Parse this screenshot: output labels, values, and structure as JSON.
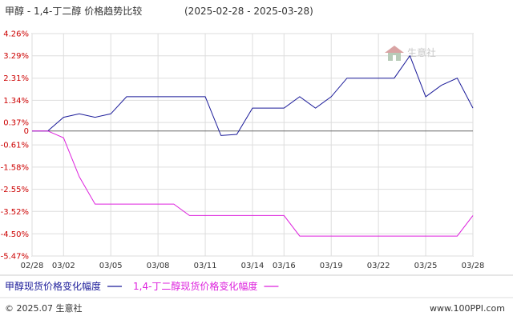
{
  "chart_data": {
    "type": "line",
    "title": "甲醇 - 1,4-丁二醇 价格趋势比较",
    "date_range": "(2025-02-28 - 2025-03-28)",
    "xlabel": "",
    "ylabel": "",
    "x_ticks": [
      "02/28",
      "03/02",
      "03/05",
      "03/08",
      "03/11",
      "03/14",
      "03/16",
      "03/19",
      "03/22",
      "03/25",
      "03/28"
    ],
    "y_ticks": [
      "4.26%",
      "3.29%",
      "2.31%",
      "1.34%",
      "0.37%",
      "0",
      "-0.61%",
      "-1.58%",
      "-2.55%",
      "-3.52%",
      "-4.50%",
      "-5.47%"
    ],
    "ylim": [
      -5.47,
      4.26
    ],
    "grid": true,
    "legend_position": "bottom-left",
    "series": [
      {
        "name": "甲醇现货价格变化幅度",
        "color": "#1a1a99",
        "x": [
          "02/28",
          "03/01",
          "03/02",
          "03/03",
          "03/04",
          "03/05",
          "03/06",
          "03/07",
          "03/08",
          "03/09",
          "03/10",
          "03/11",
          "03/12",
          "03/13",
          "03/14",
          "03/15",
          "03/16",
          "03/17",
          "03/18",
          "03/19",
          "03/20",
          "03/21",
          "03/22",
          "03/23",
          "03/24",
          "03/25",
          "03/26",
          "03/27",
          "03/28"
        ],
        "values": [
          0,
          0,
          0.6,
          0.75,
          0.6,
          0.75,
          1.5,
          1.5,
          1.5,
          1.5,
          1.5,
          1.5,
          -0.2,
          -0.15,
          1.0,
          1.0,
          1.0,
          1.5,
          1.0,
          1.5,
          2.31,
          2.31,
          2.31,
          2.31,
          3.29,
          1.5,
          2.0,
          2.31,
          1.0
        ]
      },
      {
        "name": "1,4-丁二醇现货价格变化幅度",
        "color": "#dd22dd",
        "x": [
          "02/28",
          "03/01",
          "03/02",
          "03/03",
          "03/04",
          "03/05",
          "03/06",
          "03/07",
          "03/08",
          "03/09",
          "03/10",
          "03/11",
          "03/12",
          "03/13",
          "03/14",
          "03/15",
          "03/16",
          "03/17",
          "03/18",
          "03/19",
          "03/20",
          "03/21",
          "03/22",
          "03/23",
          "03/24",
          "03/25",
          "03/26",
          "03/27",
          "03/28"
        ],
        "values": [
          0,
          0,
          -0.3,
          -2.0,
          -3.2,
          -3.2,
          -3.2,
          -3.2,
          -3.2,
          -3.2,
          -3.7,
          -3.7,
          -3.7,
          -3.7,
          -3.7,
          -3.7,
          -3.7,
          -4.6,
          -4.6,
          -4.6,
          -4.6,
          -4.6,
          -4.6,
          -4.6,
          -4.6,
          -4.6,
          -4.6,
          -4.6,
          -3.7
        ]
      }
    ]
  },
  "watermark": "生意社",
  "footer": {
    "copyright": "© 2025.07 生意社",
    "url": "www.100PPI.com"
  }
}
